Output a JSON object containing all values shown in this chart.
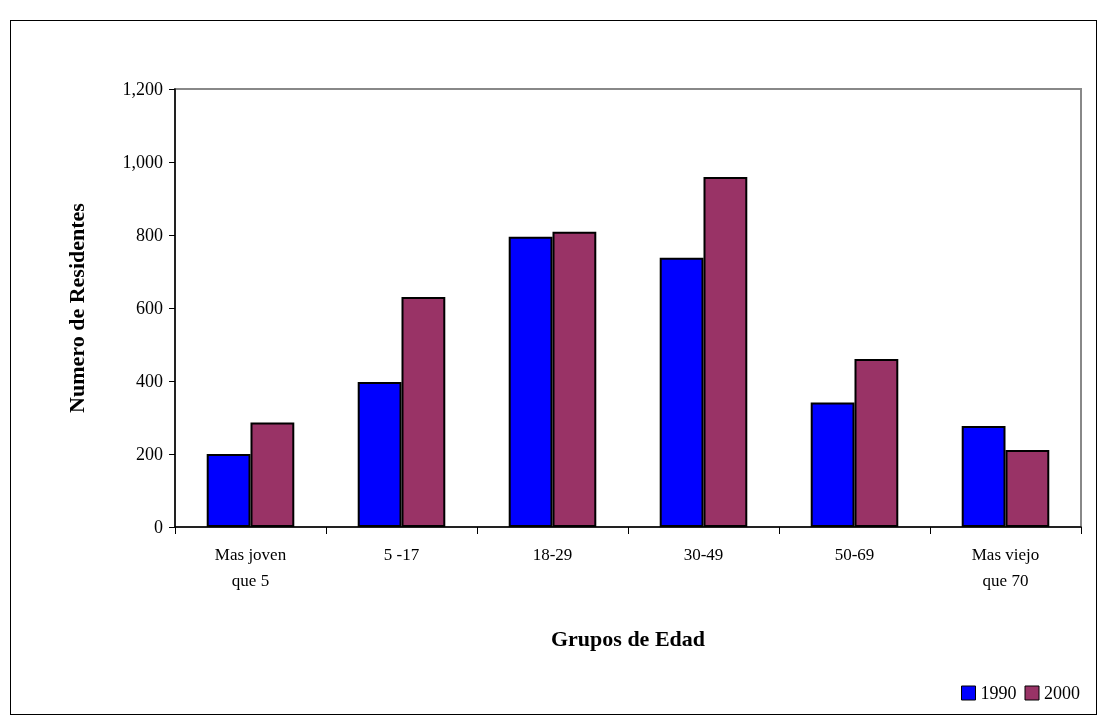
{
  "chart_data": {
    "type": "bar",
    "xlabel": "Grupos de Edad",
    "ylabel": "Numero de Residentes",
    "categories": [
      "Mas joven\nque 5",
      "5 -17",
      "18-29",
      "30-49",
      "50-69",
      "Mas viejo\nque 70"
    ],
    "series": [
      {
        "name": "1990",
        "color": "#0000ff",
        "values": [
          200,
          397,
          795,
          738,
          341,
          277
        ]
      },
      {
        "name": "2000",
        "color": "#993366",
        "values": [
          286,
          630,
          809,
          959,
          460,
          211
        ]
      }
    ],
    "ylim": [
      0,
      1200
    ],
    "yticks": [
      0,
      200,
      400,
      600,
      800,
      {
        "value": 1000,
        "label": "1,000"
      },
      {
        "value": 1200,
        "label": "1,200"
      }
    ],
    "grid": false,
    "legend": "bottom right"
  }
}
